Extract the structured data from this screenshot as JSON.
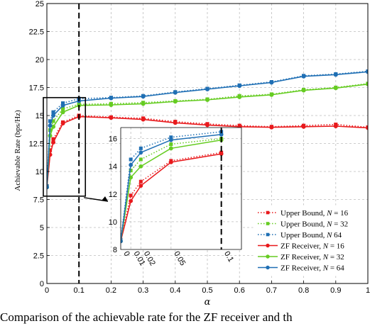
{
  "chart_data": {
    "type": "line",
    "title": "",
    "xlabel": "α",
    "ylabel": "Achievable Rate (bps/Hz)",
    "xlim": [
      0,
      1
    ],
    "ylim": [
      0,
      25
    ],
    "x_ticks": [
      0,
      0.1,
      0.2,
      0.3,
      0.4,
      0.5,
      0.6,
      0.7,
      0.8,
      0.9,
      1
    ],
    "x_tick_labels": [
      "0",
      "0.1",
      "0.2",
      "0.3",
      "0.4",
      "0.5",
      "0.6",
      "0.7",
      "0.8",
      "0.9",
      "1"
    ],
    "y_ticks": [
      0,
      2.5,
      5,
      7.5,
      10,
      12.5,
      15,
      17.5,
      20,
      22.5,
      25
    ],
    "y_tick_labels": [
      "0",
      "2.5",
      "5",
      "7.5",
      "10",
      "12.5",
      "15",
      "17.5",
      "20",
      "22.5",
      "25"
    ],
    "grid": true,
    "legend_position": "bottom-right",
    "vertical_marker_x": 0.1,
    "zoom_box": {
      "x": [
        0,
        0.12
      ],
      "y": [
        7.8,
        16.6
      ]
    },
    "series": [
      {
        "name": "Upper Bound, N = 16",
        "label_text": "Upper Bound, ",
        "label_var": "N",
        "label_rest": " = 16",
        "style": "dotted",
        "color": "#e8191c",
        "marker": "square",
        "x": [
          0,
          0.01,
          0.02,
          0.05,
          0.1,
          0.2,
          0.3,
          0.4,
          0.5,
          0.6,
          0.7,
          0.8,
          0.9,
          1
        ],
        "y": [
          8.7,
          11.9,
          12.9,
          14.4,
          15.0,
          14.85,
          14.75,
          14.45,
          14.25,
          14.1,
          14.0,
          14.1,
          14.2,
          13.95
        ]
      },
      {
        "name": "Upper Bound, N = 32",
        "label_text": "Upper Bound, ",
        "label_var": "N",
        "label_rest": " = 32",
        "style": "dotted",
        "color": "#66cc22",
        "marker": "square",
        "x": [
          0,
          0.01,
          0.02,
          0.05,
          0.1,
          0.2,
          0.3,
          0.4,
          0.5,
          0.6,
          0.7,
          0.8,
          0.9,
          1
        ],
        "y": [
          8.7,
          13.7,
          14.5,
          15.6,
          16.0,
          16.05,
          16.15,
          16.3,
          16.45,
          16.75,
          16.9,
          17.3,
          17.5,
          17.85
        ]
      },
      {
        "name": "Upper Bound, N 64",
        "label_text": "Upper Bound, ",
        "label_var": "N",
        "label_rest": "    64",
        "style": "dotted",
        "color": "#1f6fb4",
        "marker": "square",
        "x": [
          0,
          0.01,
          0.02,
          0.05,
          0.1,
          0.2,
          0.3,
          0.4,
          0.5,
          0.6,
          0.7,
          0.8,
          0.9,
          1
        ],
        "y": [
          8.7,
          14.5,
          15.3,
          16.1,
          16.5,
          16.6,
          16.75,
          17.1,
          17.4,
          17.7,
          18.0,
          18.55,
          18.7,
          18.95
        ]
      },
      {
        "name": "ZF Receiver, N = 16",
        "label_text": "ZF Receiver, ",
        "label_var": "N",
        "label_rest": " = 16",
        "style": "solid",
        "color": "#e8191c",
        "marker": "circle",
        "x": [
          0,
          0.01,
          0.02,
          0.05,
          0.1,
          0.2,
          0.3,
          0.4,
          0.5,
          0.6,
          0.7,
          0.8,
          0.9,
          1
        ],
        "y": [
          8.6,
          11.5,
          12.6,
          14.3,
          14.9,
          14.8,
          14.65,
          14.35,
          14.15,
          14.0,
          13.95,
          14.0,
          14.05,
          13.9
        ]
      },
      {
        "name": "ZF Receiver, N = 32",
        "label_text": "ZF Receiver, ",
        "label_var": "N",
        "label_rest": " = 32",
        "style": "solid",
        "color": "#66cc22",
        "marker": "circle",
        "x": [
          0,
          0.01,
          0.02,
          0.05,
          0.1,
          0.2,
          0.3,
          0.4,
          0.5,
          0.6,
          0.7,
          0.8,
          0.9,
          1
        ],
        "y": [
          8.6,
          13.2,
          14.0,
          15.3,
          15.9,
          15.95,
          16.05,
          16.25,
          16.4,
          16.65,
          16.85,
          17.25,
          17.45,
          17.8
        ]
      },
      {
        "name": "ZF Receiver, N = 64",
        "label_text": "ZF Receiver, ",
        "label_var": "N",
        "label_rest": " = 64",
        "style": "solid",
        "color": "#1f6fb4",
        "marker": "circle",
        "x": [
          0,
          0.01,
          0.02,
          0.05,
          0.1,
          0.2,
          0.3,
          0.4,
          0.5,
          0.6,
          0.7,
          0.8,
          0.9,
          1
        ],
        "y": [
          8.6,
          14.1,
          15.0,
          15.9,
          16.3,
          16.55,
          16.7,
          17.05,
          17.35,
          17.65,
          17.95,
          18.5,
          18.65,
          18.9
        ]
      }
    ],
    "inset": {
      "xlim": [
        0,
        0.12
      ],
      "ylim": [
        8,
        16.8
      ],
      "x_ticks": [
        0,
        0.01,
        0.02,
        0.05,
        0.1
      ],
      "x_tick_labels": [
        "0",
        "0.01",
        "0.02",
        "0.05",
        "0.1"
      ],
      "y_ticks": [
        8,
        10,
        12,
        14,
        16
      ],
      "y_tick_labels": [
        "8",
        "10",
        "12",
        "14",
        "16"
      ],
      "grid": true,
      "vertical_marker_x": 0.1
    }
  },
  "caption": {
    "text": "Comparison of the achievable rate for the ZF receiver and th"
  }
}
